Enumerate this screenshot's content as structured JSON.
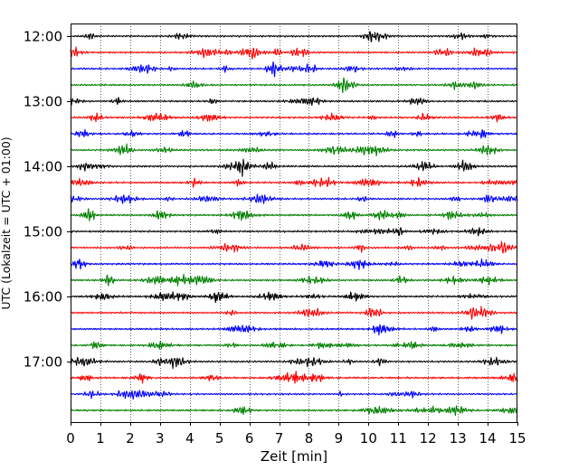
{
  "chart_data": {
    "type": "line",
    "title": "",
    "xlabel": "Zeit  [min]",
    "ylabel": "UTC (Lokalzeit = UTC + 01:00)",
    "xlim": [
      0,
      15
    ],
    "x_ticks": [
      "0",
      "1",
      "2",
      "3",
      "4",
      "5",
      "6",
      "7",
      "8",
      "9",
      "10",
      "11",
      "12",
      "13",
      "14",
      "15"
    ],
    "y_ticks": [
      "12:00",
      "13:00",
      "14:00",
      "15:00",
      "16:00",
      "17:00"
    ],
    "grid": "vertical dotted lines at each minute",
    "legend": "none",
    "trace_colors": [
      "#000000",
      "#ff0000",
      "#0000ff",
      "#008000"
    ],
    "series": [
      {
        "start": "12:00",
        "color": "#000000"
      },
      {
        "start": "12:15",
        "color": "#ff0000"
      },
      {
        "start": "12:30",
        "color": "#0000ff"
      },
      {
        "start": "12:45",
        "color": "#008000"
      },
      {
        "start": "13:00",
        "color": "#000000"
      },
      {
        "start": "13:15",
        "color": "#ff0000"
      },
      {
        "start": "13:30",
        "color": "#0000ff"
      },
      {
        "start": "13:45",
        "color": "#008000"
      },
      {
        "start": "14:00",
        "color": "#000000"
      },
      {
        "start": "14:15",
        "color": "#ff0000"
      },
      {
        "start": "14:30",
        "color": "#0000ff"
      },
      {
        "start": "14:45",
        "color": "#008000"
      },
      {
        "start": "15:00",
        "color": "#000000"
      },
      {
        "start": "15:15",
        "color": "#ff0000"
      },
      {
        "start": "15:30",
        "color": "#0000ff"
      },
      {
        "start": "15:45",
        "color": "#008000"
      },
      {
        "start": "16:00",
        "color": "#000000"
      },
      {
        "start": "16:15",
        "color": "#ff0000"
      },
      {
        "start": "16:30",
        "color": "#0000ff"
      },
      {
        "start": "16:45",
        "color": "#008000"
      },
      {
        "start": "17:00",
        "color": "#000000"
      },
      {
        "start": "17:15",
        "color": "#ff0000"
      },
      {
        "start": "17:30",
        "color": "#0000ff"
      },
      {
        "start": "17:45",
        "color": "#008000"
      }
    ]
  }
}
